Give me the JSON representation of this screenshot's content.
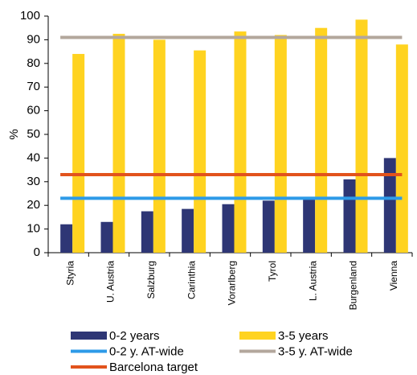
{
  "chart_data": {
    "type": "bar",
    "y_label": "%",
    "categories": [
      "Styria",
      "U. Austria",
      "Salzburg",
      "Carinthia",
      "Vorarlberg",
      "Tyrol",
      "L. Austria",
      "Burgenland",
      "Vienna"
    ],
    "series": [
      {
        "name": "0-2 years",
        "color": "#2e3675",
        "values": [
          12,
          13,
          17.5,
          18.5,
          20.5,
          22,
          23,
          31,
          40
        ]
      },
      {
        "name": "3-5 years",
        "color": "#ffd320",
        "values": [
          84,
          92.5,
          90,
          85.5,
          93.5,
          92,
          95,
          98.5,
          88
        ]
      }
    ],
    "reference_lines": [
      {
        "name": "0-2 y. AT-wide",
        "color": "#2d9ae8",
        "value": 23
      },
      {
        "name": "3-5 y. AT-wide",
        "color": "#b3a79c",
        "value": 91
      },
      {
        "name": "Barcelona target",
        "color": "#e2531c",
        "value": 33
      }
    ],
    "ylim": [
      0,
      100
    ],
    "yticks": [
      0,
      10,
      20,
      30,
      40,
      50,
      60,
      70,
      80,
      90,
      100
    ],
    "grid": false
  }
}
